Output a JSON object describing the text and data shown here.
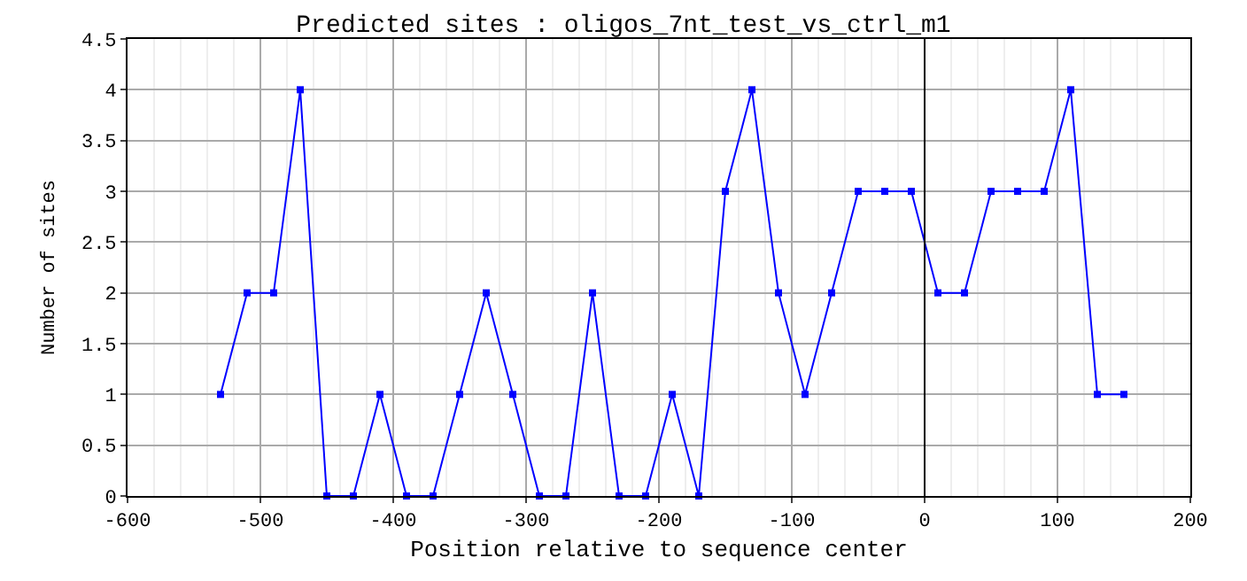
{
  "chart_data": {
    "type": "line",
    "title": "Predicted sites : oligos_7nt_test_vs_ctrl_m1",
    "xlabel": "Position relative to sequence center",
    "ylabel": "Number of sites",
    "x": [
      -530,
      -510,
      -490,
      -470,
      -450,
      -430,
      -410,
      -390,
      -370,
      -350,
      -330,
      -310,
      -290,
      -270,
      -250,
      -230,
      -210,
      -190,
      -170,
      -150,
      -130,
      -110,
      -90,
      -70,
      -50,
      -30,
      -10,
      10,
      30,
      50,
      70,
      90,
      110,
      130,
      150
    ],
    "series": [
      {
        "color": "#0000ff",
        "values": [
          1,
          2,
          2,
          4,
          0,
          0,
          1,
          0,
          0,
          1,
          2,
          1,
          0,
          0,
          2,
          0,
          0,
          1,
          0,
          3,
          4,
          2,
          1,
          2,
          3,
          3,
          3,
          2,
          2,
          3,
          3,
          3,
          4,
          1,
          1
        ]
      }
    ],
    "xlim": [
      -600,
      200
    ],
    "xticks": [
      -600,
      -500,
      -400,
      -300,
      -200,
      -100,
      0,
      100,
      200
    ],
    "ylim": [
      0,
      4.5
    ],
    "yticks": [
      0,
      0.5,
      1,
      1.5,
      2,
      2.5,
      3,
      3.5,
      4,
      4.5
    ],
    "ref_lines": [
      {
        "axis": "x",
        "value": 0,
        "color": "#000000"
      }
    ],
    "grid": true,
    "marker": "square",
    "line_style": "solid"
  }
}
